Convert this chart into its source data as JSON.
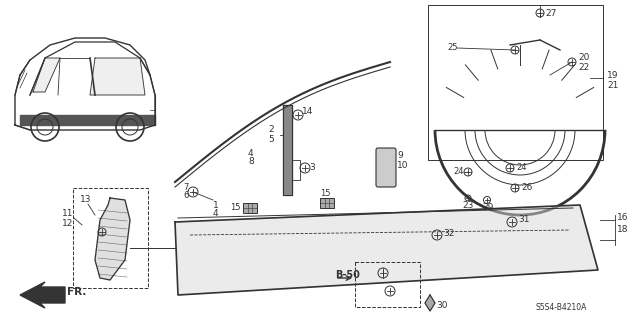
{
  "bg_color": "#ffffff",
  "diagram_code": "S5S4-B4210A",
  "line_color": "#333333",
  "gray_fill": "#cccccc",
  "light_gray": "#e8e8e8"
}
